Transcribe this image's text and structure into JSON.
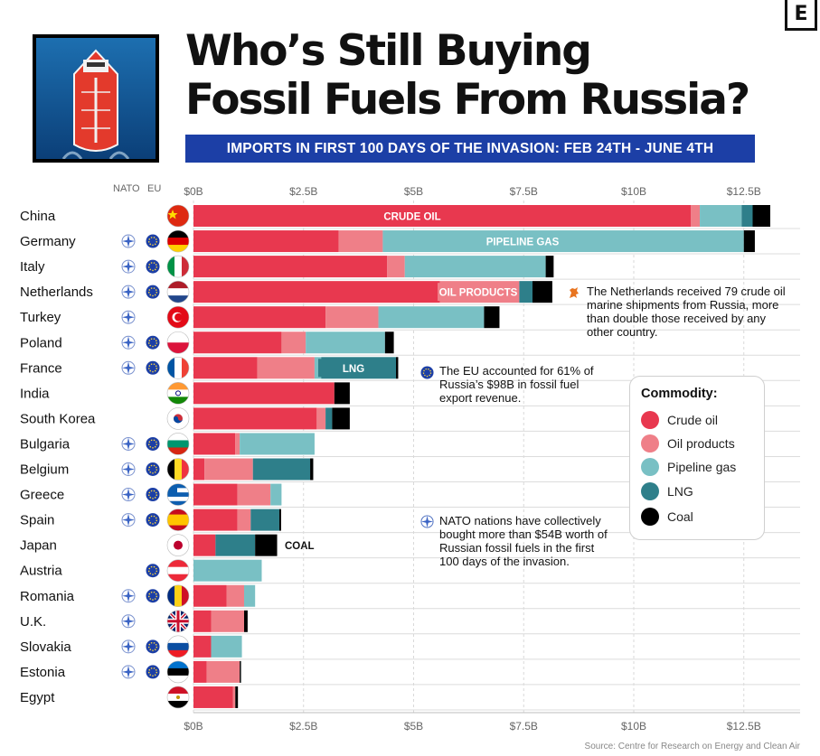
{
  "title_line1": "Who’s Still Buying",
  "title_line2": "Fossil Fuels From Russia?",
  "subtitle": "IMPORTS IN FIRST 100 DAYS OF THE INVASION:  FEB 24TH - JUNE 4TH",
  "logo_letter": "E",
  "header_nato": "NATO",
  "header_eu": "EU",
  "source": "Source: Centre for Research on Energy and Clean Air",
  "legend": {
    "title": "Commodity:",
    "items": [
      {
        "label": "Crude oil",
        "color": "#e8384f"
      },
      {
        "label": "Oil products",
        "color": "#ef7f88"
      },
      {
        "label": "Pipeline gas",
        "color": "#79c0c4"
      },
      {
        "label": "LNG",
        "color": "#2e7f8a"
      },
      {
        "label": "Coal",
        "color": "#000000"
      }
    ]
  },
  "notes": {
    "netherlands": "The Netherlands received 79 crude oil marine shipments from Russia, more than double those received by any other country.",
    "eu": "The EU accounted for 61% of Russia’s $98B in fossil fuel export revenue.",
    "nato": "NATO nations have collectively bought more than $54B worth of Russian fossil fuels in the first 100 days of the invasion."
  },
  "chart_data": {
    "type": "bar",
    "orientation": "horizontal",
    "stacked": true,
    "unit": "USD billions",
    "xlim": [
      0,
      13.5
    ],
    "xticks": [
      0,
      2.5,
      5,
      7.5,
      10,
      12.5
    ],
    "tick_labels": [
      "$0B",
      "$2.5B",
      "$5B",
      "$7.5B",
      "$10B",
      "$12.5B"
    ],
    "categories": [
      "China",
      "Germany",
      "Italy",
      "Netherlands",
      "Turkey",
      "Poland",
      "France",
      "India",
      "South Korea",
      "Bulgaria",
      "Belgium",
      "Greece",
      "Spain",
      "Japan",
      "Austria",
      "Romania",
      "U.K.",
      "Slovakia",
      "Estonia",
      "Egypt"
    ],
    "nato": [
      false,
      true,
      true,
      true,
      true,
      true,
      true,
      false,
      false,
      true,
      true,
      true,
      true,
      false,
      false,
      true,
      true,
      true,
      true,
      false
    ],
    "eu": [
      false,
      true,
      true,
      true,
      false,
      true,
      true,
      false,
      false,
      true,
      true,
      true,
      true,
      false,
      true,
      true,
      false,
      true,
      true,
      false
    ],
    "series": [
      {
        "name": "Crude oil",
        "color": "#e8384f",
        "values": [
          11.3,
          3.3,
          4.4,
          5.6,
          3.0,
          2.0,
          1.45,
          3.2,
          2.8,
          0.95,
          0.25,
          1.0,
          1.0,
          0.5,
          0.0,
          0.75,
          0.4,
          0.4,
          0.3,
          0.9
        ]
      },
      {
        "name": "Oil products",
        "color": "#ef7f88",
        "values": [
          0.2,
          1.0,
          0.4,
          1.8,
          1.2,
          0.55,
          1.3,
          0.0,
          0.2,
          0.1,
          1.1,
          0.75,
          0.3,
          0.0,
          0.0,
          0.4,
          0.75,
          0.0,
          0.75,
          0.05
        ]
      },
      {
        "name": "Pipeline gas",
        "color": "#79c0c4",
        "values": [
          0.95,
          8.2,
          3.2,
          0.0,
          2.4,
          1.8,
          0.15,
          0.0,
          0.0,
          1.7,
          0.0,
          0.25,
          0.0,
          0.0,
          1.55,
          0.25,
          0.0,
          0.7,
          0.0,
          0.0
        ]
      },
      {
        "name": "LNG",
        "color": "#2e7f8a",
        "values": [
          0.25,
          0.0,
          0.0,
          0.3,
          0.0,
          0.0,
          1.7,
          0.0,
          0.15,
          0.0,
          1.3,
          0.0,
          0.65,
          0.9,
          0.0,
          0.0,
          0.0,
          0.0,
          0.0,
          0.0
        ]
      },
      {
        "name": "Coal",
        "color": "#000000",
        "values": [
          0.4,
          0.25,
          0.18,
          0.45,
          0.35,
          0.2,
          0.05,
          0.35,
          0.4,
          0.0,
          0.07,
          0.0,
          0.04,
          0.5,
          0.0,
          0.0,
          0.08,
          0.0,
          0.03,
          0.06
        ]
      }
    ],
    "bar_labels": [
      {
        "row": "China",
        "text": "CRUDE OIL"
      },
      {
        "row": "Germany",
        "text": "PIPELINE GAS"
      },
      {
        "row": "Netherlands",
        "text": "OIL PRODUCTS"
      },
      {
        "row": "France",
        "text": "LNG"
      },
      {
        "row": "Japan",
        "text": "COAL"
      }
    ]
  }
}
